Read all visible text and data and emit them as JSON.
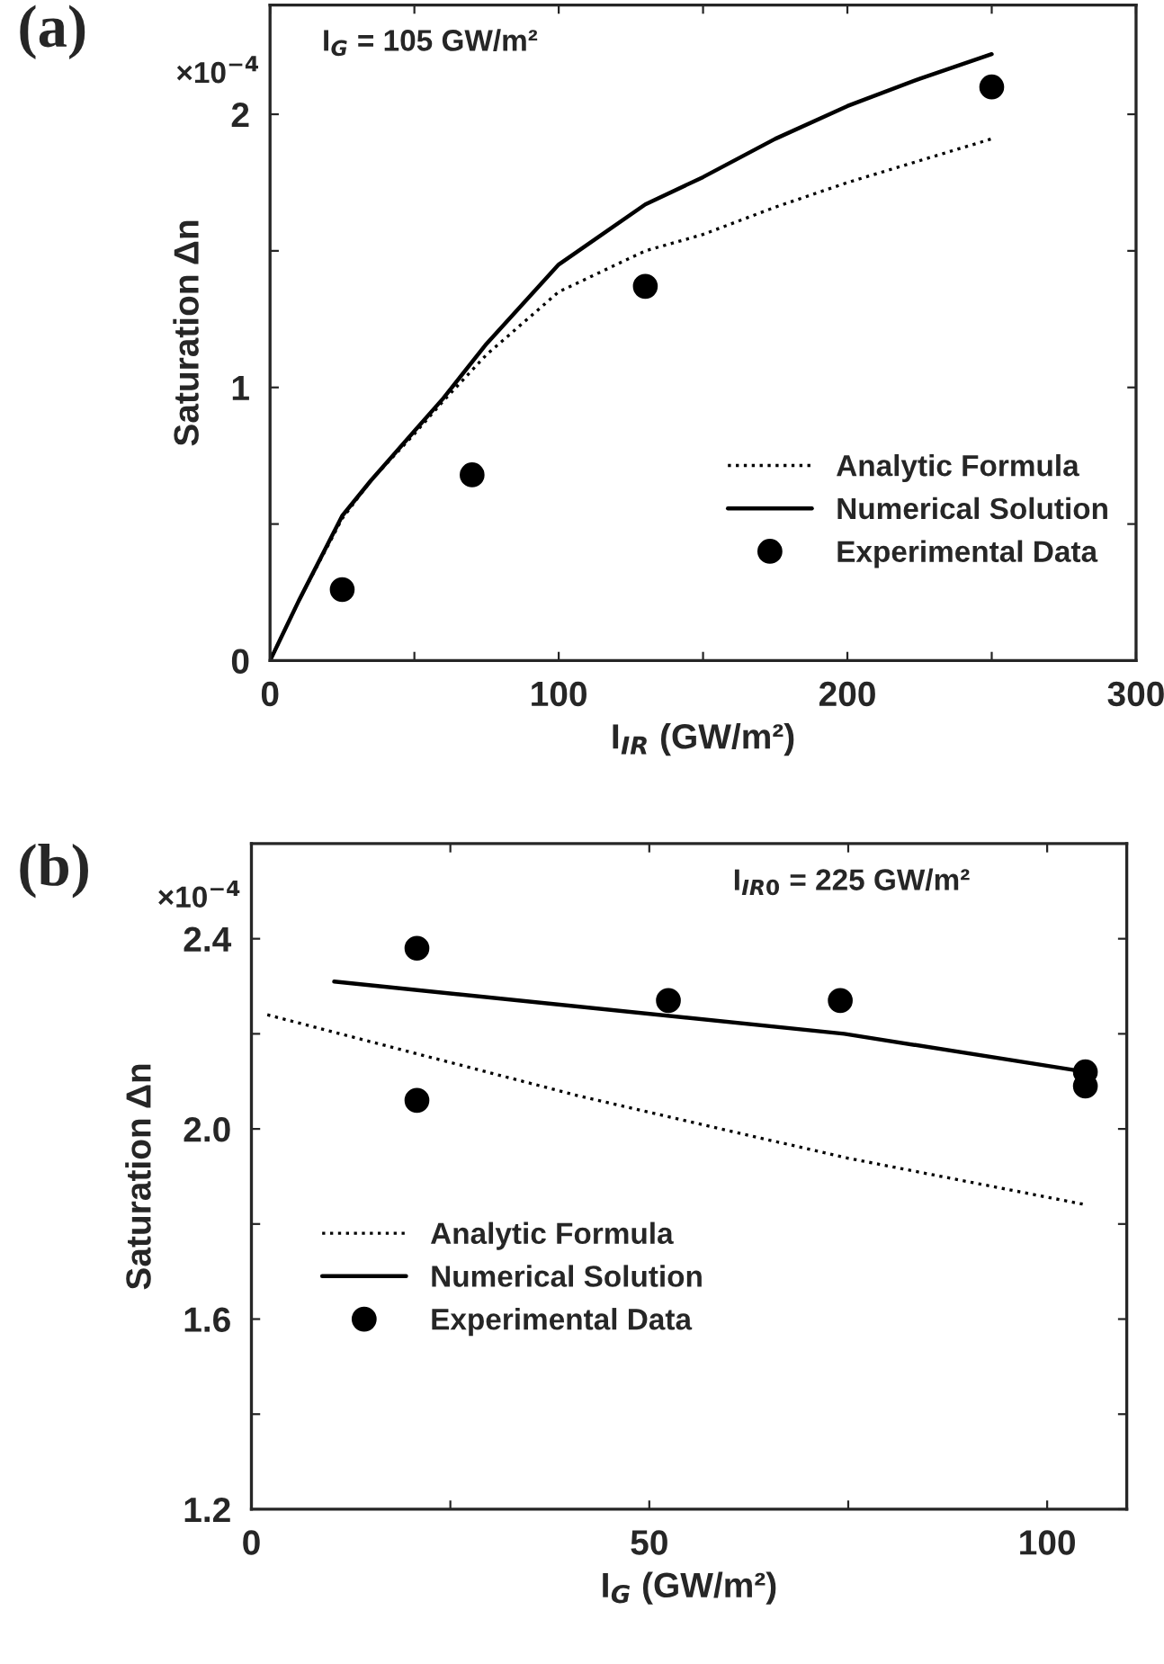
{
  "chart_data": [
    {
      "type": "line",
      "title": "(a)",
      "xlabel": "I$_{IR}$ (GW/m²)",
      "ylabel": "Saturation Δn",
      "annotations": [
        "I$_{G}$ = 105 GW/m²",
        "×10$^{−4}$"
      ],
      "xlim": [
        0,
        300
      ],
      "xticks": [
        0,
        {
          "value": 50,
          "label": null
        },
        100,
        {
          "value": 150,
          "label": null
        },
        200,
        {
          "value": 250,
          "label": null
        },
        300
      ],
      "ylim": [
        0,
        2.4
      ],
      "yticks": [
        0,
        {
          "value": 0.5,
          "label": null
        },
        1,
        {
          "value": 1.5,
          "label": null
        },
        2
      ],
      "legend": "lower right",
      "grid": false,
      "series": [
        {
          "name": "Analytic Formula",
          "color": "#000000",
          "line_style": "dotted",
          "marker": "none",
          "x": [
            0,
            5,
            10,
            25,
            35,
            50,
            60,
            75,
            100,
            130,
            150,
            175,
            200,
            225,
            250
          ],
          "values": [
            0,
            0.11,
            0.22,
            0.52,
            0.66,
            0.83,
            0.95,
            1.12,
            1.35,
            1.5,
            1.56,
            1.66,
            1.75,
            1.83,
            1.91
          ]
        },
        {
          "name": "Numerical Solution",
          "color": "#000000",
          "line_style": "solid",
          "marker": "none",
          "x": [
            0,
            5,
            10,
            25,
            35,
            50,
            60,
            75,
            100,
            130,
            150,
            175,
            200,
            225,
            250
          ],
          "values": [
            0,
            0.11,
            0.22,
            0.53,
            0.66,
            0.84,
            0.96,
            1.16,
            1.45,
            1.67,
            1.77,
            1.91,
            2.03,
            2.13,
            2.22
          ]
        },
        {
          "name": "Experimental Data",
          "type": "scatter",
          "color": "#000000",
          "marker": "circle",
          "x": [
            25,
            70,
            130,
            250
          ],
          "values": [
            0.26,
            0.68,
            1.37,
            2.1
          ]
        }
      ]
    },
    {
      "type": "line",
      "title": "(b)",
      "xlabel": "I$_{G}$ (GW/m²)",
      "ylabel": "Saturation Δn",
      "annotations": [
        "I$_{IR0}$ = 225 GW/m²",
        "×10$^{−4}$"
      ],
      "xlim": [
        0,
        110
      ],
      "xticks": [
        0,
        {
          "value": 25,
          "label": null
        },
        50,
        {
          "value": 75,
          "label": null
        },
        100
      ],
      "ylim": [
        1.2,
        2.6
      ],
      "yticks": [
        1.2,
        {
          "value": 1.4,
          "label": null
        },
        1.6,
        {
          "value": 1.8,
          "label": null
        },
        {
          "value": 2.0,
          "label": "2.0"
        },
        {
          "value": 2.2,
          "label": null
        },
        {
          "value": 2.4,
          "label": "2.4"
        }
      ],
      "legend": "lower left",
      "grid": false,
      "series": [
        {
          "name": "Analytic Formula",
          "color": "#000000",
          "line_style": "dotted",
          "marker": "none",
          "x": [
            2,
            41,
            74.5,
            105
          ],
          "values": [
            2.24,
            2.07,
            1.94,
            1.84
          ]
        },
        {
          "name": "Numerical Solution",
          "color": "#000000",
          "line_style": "solid",
          "marker": "none",
          "x": [
            10.4,
            74.5,
            104.8
          ],
          "values": [
            2.31,
            2.2,
            2.12
          ]
        },
        {
          "name": "Experimental Data",
          "type": "scatter",
          "color": "#000000",
          "marker": "circle",
          "x": [
            20.8,
            20.8,
            52.4,
            74,
            104.8,
            104.8
          ],
          "values": [
            2.38,
            2.06,
            2.27,
            2.27,
            2.12,
            2.09
          ]
        }
      ]
    }
  ]
}
